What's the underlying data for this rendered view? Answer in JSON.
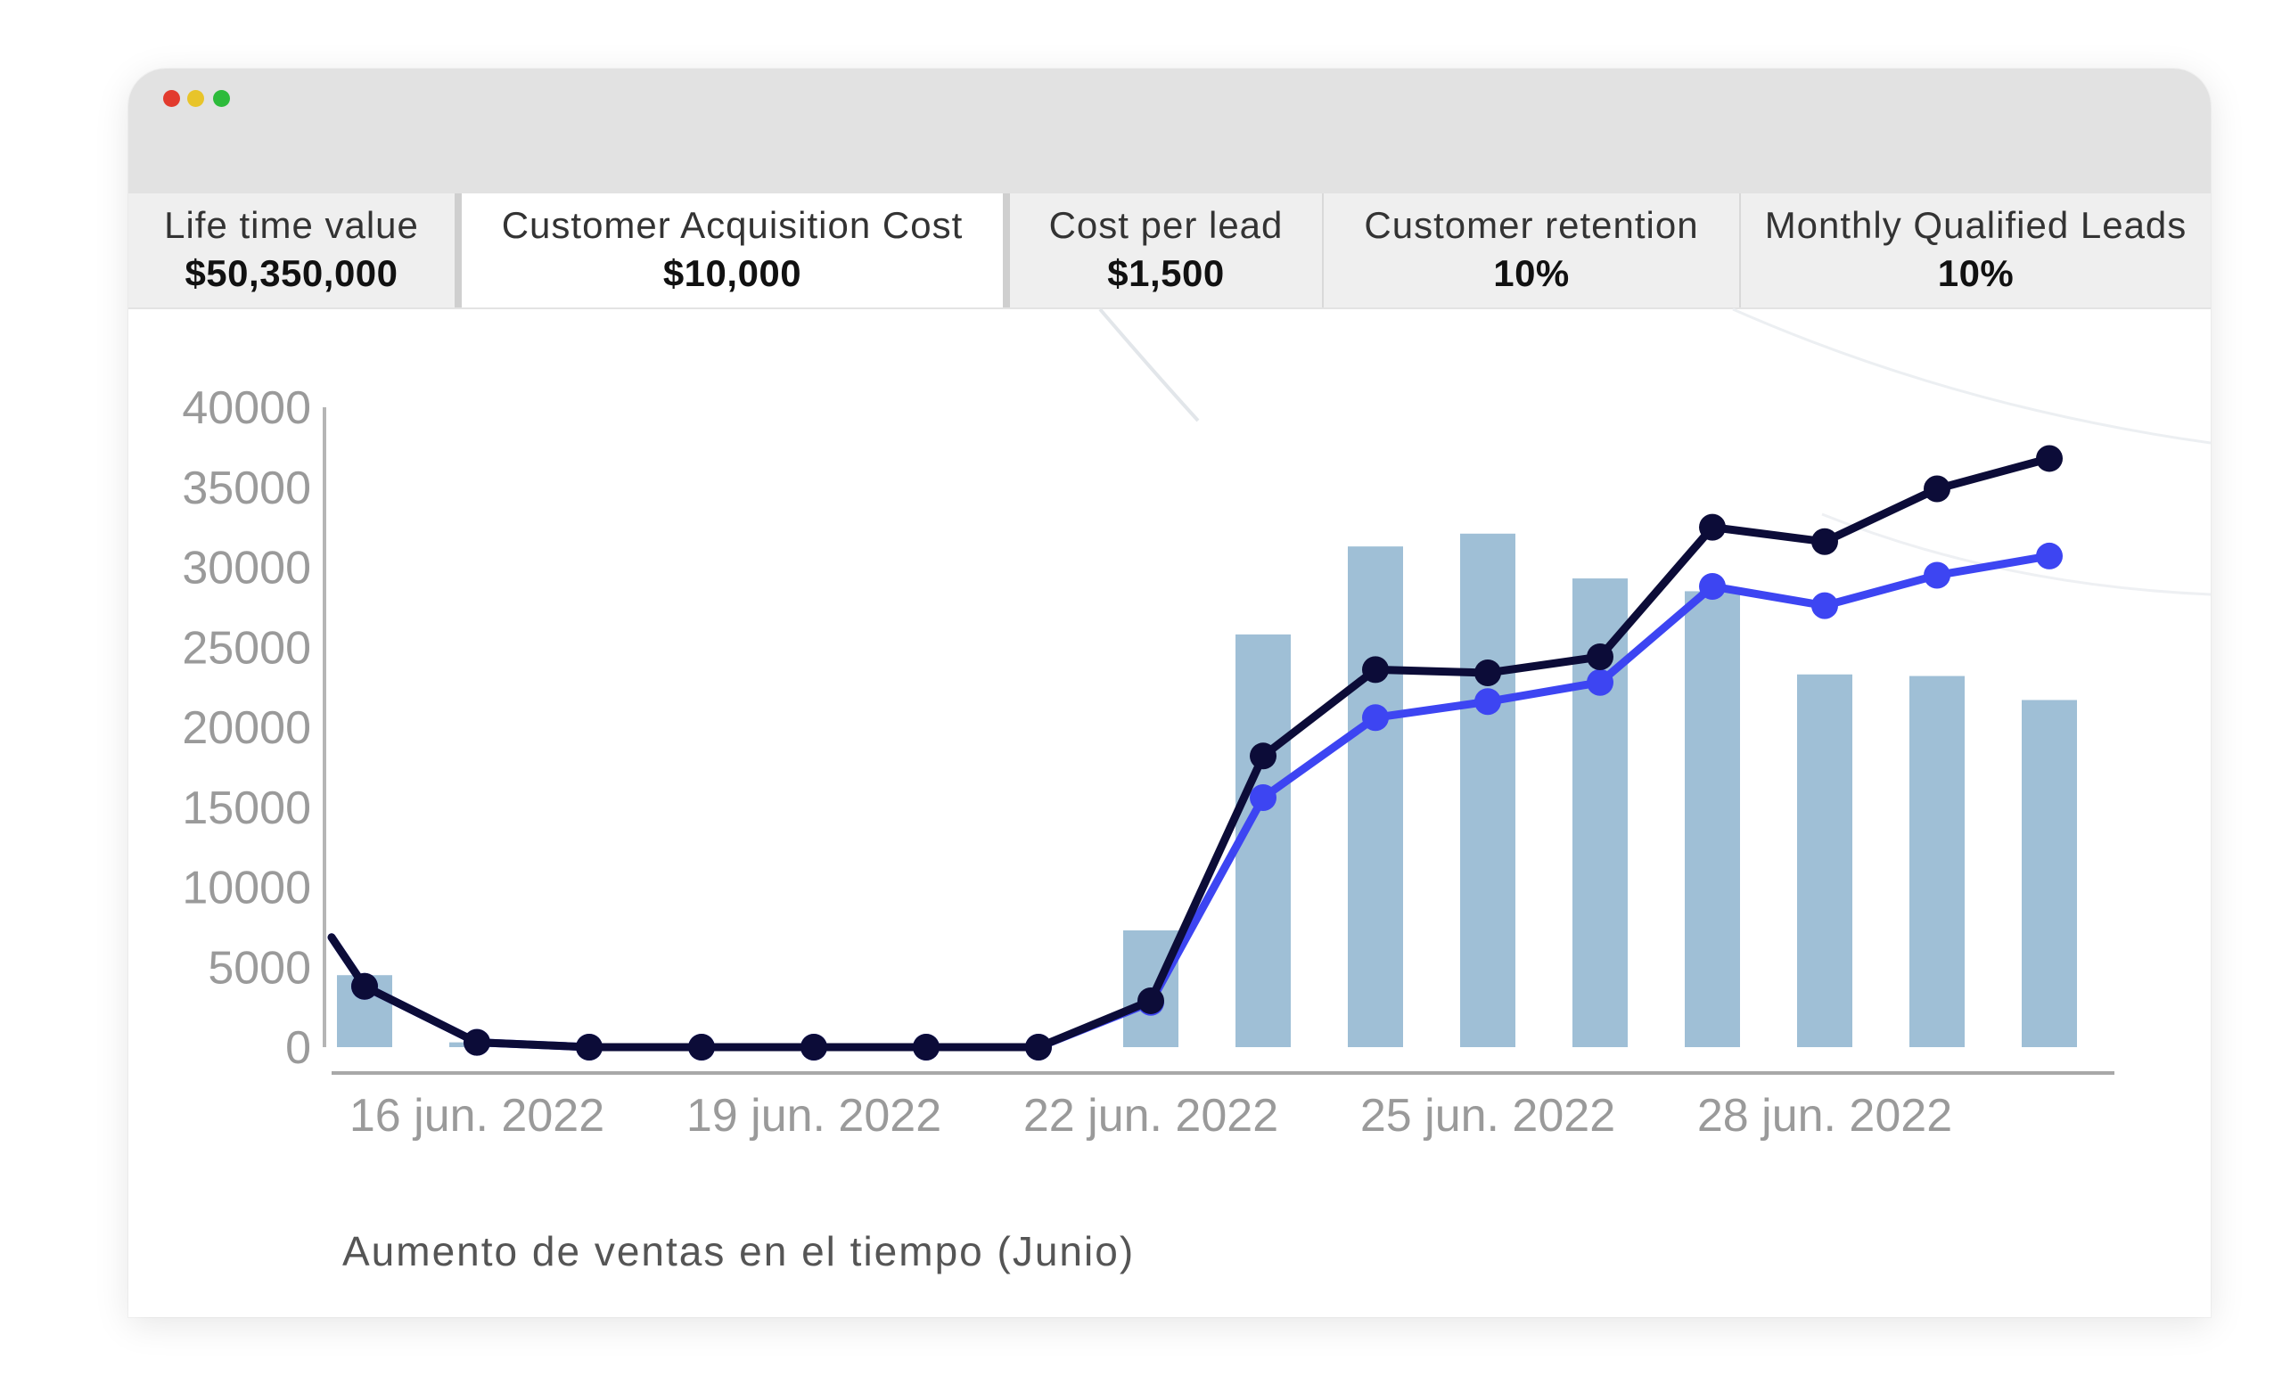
{
  "window": {
    "controls": [
      "close",
      "minimize",
      "zoom"
    ],
    "colors": {
      "close": "#e23b2e",
      "minimize": "#e8c42a",
      "zoom": "#2dbb3b"
    }
  },
  "metrics": [
    {
      "label": "Life time value",
      "value": "$50,350,000"
    },
    {
      "label": "Customer Acquisition Cost",
      "value": "$10,000"
    },
    {
      "label": "Cost per lead",
      "value": "$1,500"
    },
    {
      "label": "Customer retention",
      "value": "10%"
    },
    {
      "label": "Monthly Qualified Leads",
      "value": "10%"
    }
  ],
  "caption": "Aumento de ventas en el tiempo (Junio)",
  "chart_data": {
    "type": "bar",
    "x": [
      "2022-06-15",
      "2022-06-16",
      "2022-06-17",
      "2022-06-18",
      "2022-06-19",
      "2022-06-20",
      "2022-06-21",
      "2022-06-22",
      "2022-06-23",
      "2022-06-24",
      "2022-06-25",
      "2022-06-26",
      "2022-06-27",
      "2022-06-28",
      "2022-06-29",
      "2022-06-30"
    ],
    "x_tick_labels": [
      "16 jun. 2022",
      "19 jun. 2022",
      "22 jun. 2022",
      "25 jun. 2022",
      "28 jun. 2022"
    ],
    "x_tick_dates": [
      "2022-06-16",
      "2022-06-19",
      "2022-06-22",
      "2022-06-25",
      "2022-06-28"
    ],
    "y_ticks": [
      0,
      5000,
      10000,
      15000,
      20000,
      25000,
      30000,
      35000,
      40000
    ],
    "ylim": [
      0,
      40000
    ],
    "grid": false,
    "series": [
      {
        "kind": "bar",
        "color": "#9fbfd6",
        "values": [
          4500,
          300,
          0,
          0,
          0,
          0,
          0,
          7300,
          25800,
          31300,
          32100,
          29300,
          28500,
          23300,
          23200,
          21700
        ]
      },
      {
        "kind": "line",
        "color": "#3d45f2",
        "values": [
          3800,
          300,
          0,
          0,
          0,
          0,
          0,
          2800,
          15600,
          20600,
          21600,
          22800,
          28800,
          27600,
          29500,
          30700
        ]
      },
      {
        "kind": "line",
        "color": "#0c0c38",
        "values": [
          3800,
          300,
          0,
          0,
          0,
          0,
          0,
          2900,
          18200,
          23600,
          23400,
          24400,
          32500,
          31600,
          34900,
          36800
        ]
      }
    ]
  }
}
